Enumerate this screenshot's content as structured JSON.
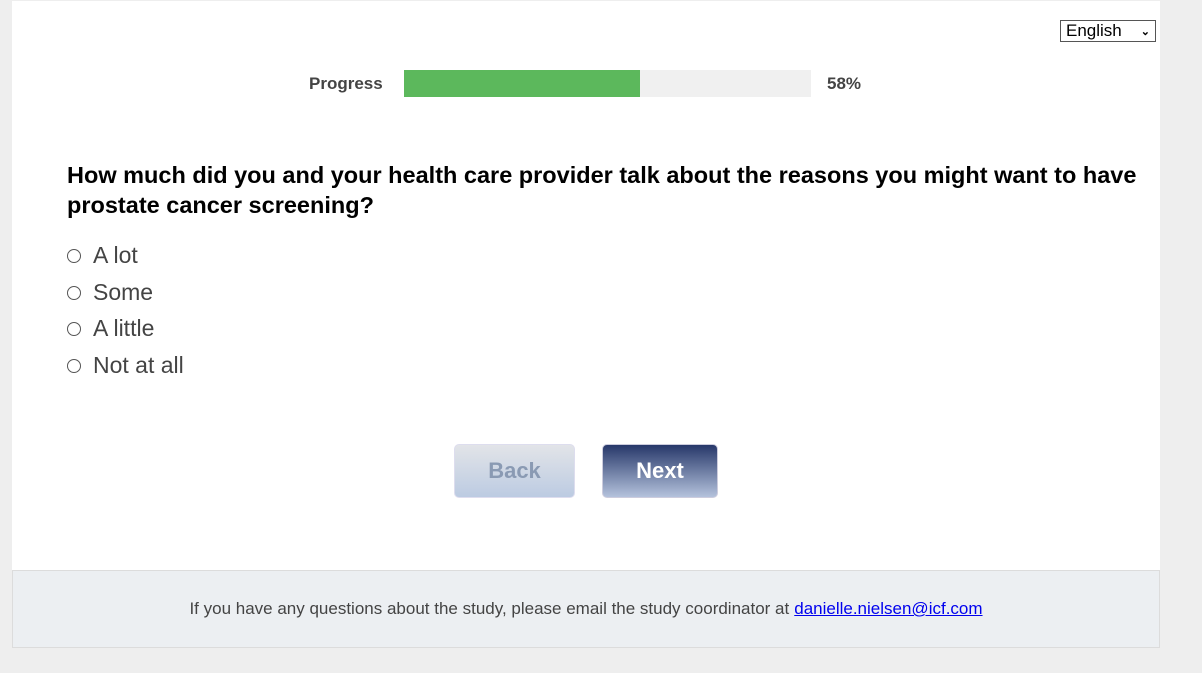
{
  "language": {
    "selected": "English",
    "icon": "chevron-down-icon"
  },
  "progress": {
    "label": "Progress",
    "percent": 58,
    "text": "58%",
    "color": "#5cb85c"
  },
  "question": "How much did you and your health care provider talk about the reasons you might want to have prostate cancer screening?",
  "options": [
    "A lot",
    "Some",
    "A little",
    "Not at all"
  ],
  "buttons": {
    "back": "Back",
    "next": "Next"
  },
  "footer": {
    "text": "If you have any questions about the study, please email the study coordinator at",
    "email": "danielle.nielsen@icf.com"
  }
}
